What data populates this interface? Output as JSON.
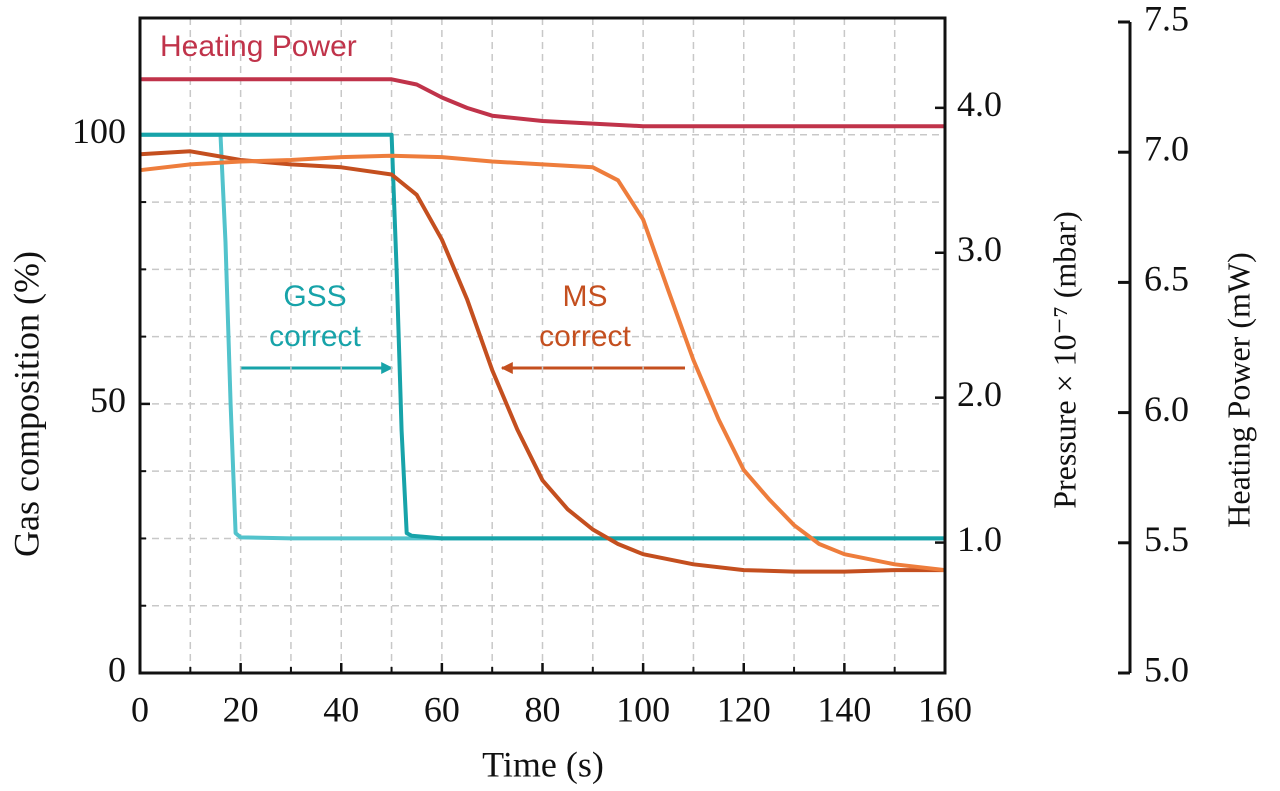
{
  "chart_data": {
    "type": "line",
    "xlabel": "Time (s)",
    "ylabel": "Gas composition (%)",
    "y2label": "Pressure × 10⁻⁷ (mbar)",
    "y3label": "Heating Power (mW)",
    "xlim": [
      0,
      160
    ],
    "xticks": [
      0,
      20,
      40,
      60,
      80,
      100,
      120,
      140,
      160
    ],
    "xminor": [
      10,
      30,
      50,
      70,
      90,
      110,
      130,
      150
    ],
    "ylim": [
      0,
      121.7
    ],
    "yticks": [
      0,
      50,
      100
    ],
    "yminor": [
      12.5,
      25,
      37.5,
      62.5,
      75,
      87.5
    ],
    "y2lim": [
      0.1,
      4.62
    ],
    "y2ticks": [
      {
        "value": 1,
        "label": "1.0"
      },
      {
        "value": 2,
        "label": "2.0"
      },
      {
        "value": 3,
        "label": "3.0"
      },
      {
        "value": 4,
        "label": "4.0"
      }
    ],
    "y3lim": [
      5.0,
      7.5
    ],
    "y3ticks": [
      {
        "value": 5,
        "label": "5.0"
      },
      5.5,
      {
        "value": 6,
        "label": "6.0"
      },
      6.5,
      {
        "value": 7,
        "label": "7.0"
      },
      7.5
    ],
    "grid": true,
    "series": [
      {
        "color": "#c0334a",
        "axis": "y3",
        "x": [
          0,
          10,
          20,
          30,
          40,
          50,
          55,
          60,
          65,
          70,
          80,
          90,
          100,
          110,
          120,
          130,
          140,
          150,
          160
        ],
        "values": [
          7.28,
          7.28,
          7.28,
          7.28,
          7.28,
          7.28,
          7.26,
          7.21,
          7.17,
          7.14,
          7.12,
          7.11,
          7.1,
          7.1,
          7.1,
          7.1,
          7.1,
          7.1,
          7.1
        ]
      },
      {
        "color": "#52c3cc",
        "x": [
          0,
          16,
          17,
          18,
          19,
          20,
          30,
          40,
          60,
          80,
          100,
          120,
          140,
          160
        ],
        "values": [
          100,
          100,
          80,
          50,
          26,
          25.2,
          25,
          25,
          25,
          25,
          25,
          25,
          25,
          25
        ]
      },
      {
        "color": "#17a3a9",
        "x": [
          0,
          50,
          51,
          52,
          53,
          54,
          60,
          80,
          100,
          120,
          140,
          160
        ],
        "values": [
          100,
          100,
          75,
          45,
          26,
          25.5,
          25,
          25,
          25,
          25,
          25,
          25
        ]
      },
      {
        "color": "#c44f1f",
        "axis": "y2",
        "x": [
          0,
          10,
          20,
          30,
          40,
          50,
          55,
          60,
          65,
          70,
          75,
          80,
          85,
          90,
          95,
          100,
          110,
          120,
          130,
          140,
          150,
          160
        ],
        "values": [
          3.68,
          3.7,
          3.64,
          3.61,
          3.59,
          3.54,
          3.4,
          3.09,
          2.68,
          2.19,
          1.78,
          1.43,
          1.23,
          1.09,
          0.99,
          0.92,
          0.85,
          0.81,
          0.8,
          0.8,
          0.81,
          0.81
        ]
      },
      {
        "color": "#ee7d3c",
        "axis": "y2",
        "x": [
          0,
          10,
          20,
          30,
          40,
          50,
          60,
          70,
          80,
          90,
          95,
          100,
          105,
          110,
          115,
          120,
          125,
          130,
          135,
          140,
          150,
          160
        ],
        "values": [
          3.57,
          3.61,
          3.63,
          3.64,
          3.66,
          3.67,
          3.66,
          3.63,
          3.61,
          3.59,
          3.5,
          3.23,
          2.74,
          2.26,
          1.85,
          1.5,
          1.3,
          1.12,
          0.99,
          0.92,
          0.85,
          0.81
        ]
      }
    ],
    "annotations": [
      {
        "lines": [
          "Heating Power"
        ],
        "color": "#c0334a"
      },
      {
        "lines": [
          "GSS",
          "correct"
        ],
        "color": "#17a3a9"
      },
      {
        "lines": [
          "MS",
          "correct"
        ],
        "color": "#c44f1f"
      }
    ]
  }
}
